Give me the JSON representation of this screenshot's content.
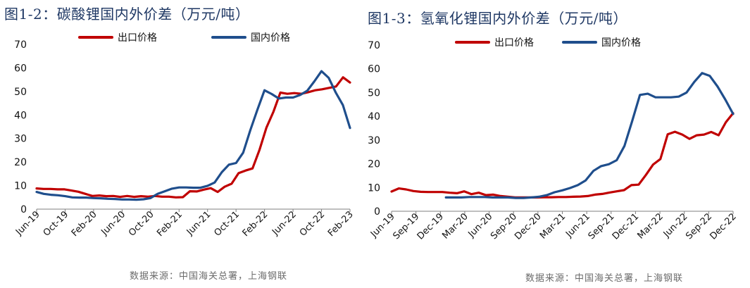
{
  "chart_data": [
    {
      "type": "line",
      "title": "图1-2：碳酸锂国内外价差（万元/吨）",
      "source": "数据来源：中国海关总署，上海钢联",
      "ylim": [
        0,
        70
      ],
      "yticks": [
        "0",
        "10",
        "20",
        "30",
        "40",
        "50",
        "60",
        "70"
      ],
      "xlabels": [
        "Jun-19",
        "Oct-19",
        "Feb-20",
        "Jun-20",
        "Oct-20",
        "Feb-21",
        "Jun-21",
        "Oct-21",
        "Feb-22",
        "Jun-22",
        "Oct-22",
        "Feb-23"
      ],
      "legend_placement": "top",
      "grid": false,
      "series": [
        {
          "name": "出口价格",
          "color": "#c00000",
          "values": [
            8.8,
            8.6,
            8.6,
            8.4,
            8.4,
            7.9,
            7.4,
            6.5,
            5.6,
            5.8,
            5.5,
            5.6,
            5.2,
            5.6,
            5.2,
            5.5,
            5.3,
            5.6,
            5.3,
            5.3,
            5.0,
            5.1,
            7.6,
            7.5,
            8.3,
            8.9,
            7.3,
            9.5,
            10.8,
            15.3,
            16.4,
            17.3,
            25.1,
            34.6,
            41.3,
            49.5,
            49.0,
            49.3,
            49.0,
            49.7,
            50.5,
            50.9,
            51.5,
            52.1,
            56.0,
            53.8
          ]
        },
        {
          "name": "国内价格",
          "color": "#1f4e8c",
          "values": [
            7.3,
            6.5,
            6.1,
            5.9,
            5.5,
            5.0,
            4.9,
            4.9,
            4.7,
            4.6,
            4.4,
            4.3,
            4.1,
            4.1,
            4.0,
            4.2,
            4.7,
            6.5,
            7.6,
            8.7,
            9.2,
            9.2,
            9.1,
            9.1,
            9.9,
            11.3,
            15.7,
            18.9,
            19.6,
            24.0,
            33.5,
            42.2,
            50.5,
            48.9,
            47.0,
            47.4,
            47.4,
            48.5,
            50.3,
            54.3,
            58.6,
            55.8,
            49.5,
            44.2,
            34.5
          ]
        }
      ]
    },
    {
      "type": "line",
      "title": "图1-3：氢氧化锂国内外价差（万元/吨）",
      "source": "数据来源：中国海关总署，上海钢联",
      "ylim": [
        0,
        70
      ],
      "yticks": [
        "0",
        "10",
        "20",
        "30",
        "40",
        "50",
        "60",
        "70"
      ],
      "xlabels": [
        "Jun-19",
        "Sep-19",
        "Dec-19",
        "Mar-20",
        "Jun-20",
        "Sep-20",
        "Dec-20",
        "Mar-21",
        "Jun-21",
        "Sep-21",
        "Dec-21",
        "Mar-22",
        "Jun-22",
        "Sep-22",
        "Dec-22"
      ],
      "legend_placement": "top",
      "grid": false,
      "series": [
        {
          "name": "出口价格",
          "color": "#c00000",
          "values": [
            8.3,
            9.6,
            9.2,
            8.5,
            8.2,
            8.1,
            8.1,
            8.1,
            7.8,
            7.6,
            8.4,
            7.2,
            7.8,
            6.8,
            7.0,
            6.4,
            6.1,
            5.8,
            5.8,
            5.8,
            5.8,
            5.9,
            5.9,
            6.0,
            6.0,
            6.1,
            6.2,
            6.4,
            7.0,
            7.3,
            7.9,
            8.4,
            8.9,
            11.0,
            11.2,
            15.3,
            19.7,
            22.0,
            32.4,
            33.5,
            32.3,
            30.5,
            32.0,
            32.3,
            33.4,
            32.0,
            37.5,
            41.3
          ]
        },
        {
          "name": "国内价格",
          "color": "#1f4e8c",
          "values": [
            null,
            null,
            null,
            null,
            null,
            null,
            null,
            5.8,
            5.8,
            5.8,
            6.0,
            6.0,
            6.0,
            5.8,
            5.8,
            5.8,
            5.6,
            5.6,
            5.8,
            6.1,
            6.8,
            8.0,
            8.8,
            9.8,
            11.0,
            13.0,
            17.0,
            19.0,
            19.8,
            21.5,
            27.5,
            38.0,
            49.0,
            49.5,
            48.0,
            48.0,
            48.0,
            48.3,
            50.0,
            54.5,
            58.2,
            57.0,
            52.5,
            47.0,
            41.0
          ]
        }
      ]
    }
  ]
}
